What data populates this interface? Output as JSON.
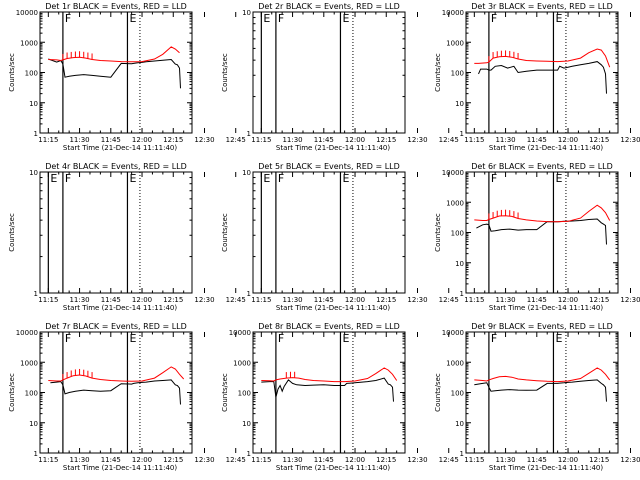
{
  "colors": {
    "events": "#000000",
    "lld": "#ff0000",
    "axes": "#000000",
    "background": "#ffffff"
  },
  "x_ticks": [
    "11:15",
    "11:30",
    "11:45",
    "12:00",
    "12:15",
    "12:30",
    "12:45"
  ],
  "x_label": "Start Time (21-Dec-14 11:11:40)",
  "y_label": "Counts/sec",
  "chart_data": [
    {
      "type": "line",
      "title": "Det 1r BLACK = Events, RED = LLD",
      "ylog": true,
      "yticks": [
        "1",
        "10",
        "100",
        "1000",
        "10000"
      ],
      "ylim": [
        1,
        10000
      ],
      "x_range_min": [
        15,
        53
      ],
      "markers": [
        {
          "t": 22,
          "label": "F"
        },
        {
          "t": 53,
          "label": "E"
        }
      ],
      "dotted_t": 59,
      "series": [
        {
          "role": "events",
          "x": [
            15,
            19,
            21,
            22,
            23,
            25,
            28,
            32,
            36,
            40,
            45,
            50,
            55,
            56,
            58,
            60,
            62,
            66,
            70,
            74,
            76,
            77,
            78,
            78.5
          ],
          "y": [
            280,
            220,
            250,
            190,
            70,
            75,
            80,
            85,
            80,
            75,
            70,
            200,
            195,
            200,
            210,
            215,
            225,
            240,
            255,
            270,
            190,
            180,
            140,
            30
          ]
        },
        {
          "role": "lld",
          "x": [
            15,
            19,
            21,
            22,
            24,
            27,
            30,
            33,
            36,
            40,
            45,
            50,
            55,
            60,
            66,
            70,
            74,
            76,
            78
          ],
          "y": [
            270,
            260,
            250,
            260,
            290,
            310,
            320,
            300,
            270,
            250,
            240,
            230,
            225,
            230,
            280,
            400,
            700,
            600,
            450
          ],
          "ticks_at": [
            22,
            24,
            26,
            28,
            30,
            32,
            34,
            36
          ]
        }
      ]
    },
    {
      "type": "line",
      "title": "Det 2r BLACK = Events, RED = LLD",
      "ylog": true,
      "yticks": [
        "1",
        "10"
      ],
      "ylim": [
        1,
        10
      ],
      "x_range_min": [
        15,
        53
      ],
      "markers": [
        {
          "t": 15,
          "label": "E"
        },
        {
          "t": 22,
          "label": "F"
        },
        {
          "t": 53,
          "label": "E"
        }
      ],
      "dotted_t": 59,
      "series": []
    },
    {
      "type": "line",
      "title": "Det 3r BLACK = Events, RED = LLD",
      "ylog": true,
      "yticks": [
        "1",
        "10",
        "100",
        "1000",
        "10000"
      ],
      "ylim": [
        1,
        10000
      ],
      "x_range_min": [
        15,
        53
      ],
      "markers": [
        {
          "t": 22,
          "label": "F"
        },
        {
          "t": 53,
          "label": "E"
        }
      ],
      "dotted_t": 59,
      "series": [
        {
          "role": "events",
          "x": [
            17,
            18,
            21,
            22,
            23,
            25,
            28,
            31,
            34,
            36,
            40,
            45,
            50,
            55,
            56,
            58,
            60,
            62,
            66,
            70,
            74,
            76,
            77,
            78,
            78.5
          ],
          "y": [
            90,
            130,
            130,
            120,
            120,
            160,
            170,
            140,
            160,
            100,
            110,
            120,
            120,
            120,
            160,
            140,
            150,
            160,
            180,
            200,
            230,
            180,
            150,
            90,
            20
          ]
        },
        {
          "role": "lld",
          "x": [
            15,
            17,
            21,
            22,
            24,
            27,
            30,
            33,
            36,
            40,
            45,
            50,
            55,
            60,
            66,
            70,
            74,
            76,
            78,
            80
          ],
          "y": [
            200,
            200,
            210,
            220,
            300,
            330,
            340,
            320,
            280,
            250,
            240,
            235,
            230,
            240,
            300,
            450,
            600,
            550,
            350,
            150
          ],
          "ticks_at": [
            22,
            24,
            26,
            28,
            30,
            32,
            34,
            36
          ]
        }
      ]
    },
    {
      "type": "line",
      "title": "Det 4r BLACK = Events, RED = LLD",
      "ylog": true,
      "yticks": [
        "1",
        "10"
      ],
      "ylim": [
        1,
        10
      ],
      "x_range_min": [
        15,
        53
      ],
      "markers": [
        {
          "t": 15,
          "label": "E"
        },
        {
          "t": 22,
          "label": "F"
        },
        {
          "t": 53,
          "label": "E"
        }
      ],
      "dotted_t": 59,
      "series": []
    },
    {
      "type": "line",
      "title": "Det 5r BLACK = Events, RED = LLD",
      "ylog": true,
      "yticks": [
        "1",
        "10"
      ],
      "ylim": [
        1,
        10
      ],
      "x_range_min": [
        15,
        53
      ],
      "markers": [
        {
          "t": 15,
          "label": "E"
        },
        {
          "t": 22,
          "label": "F"
        },
        {
          "t": 53,
          "label": "E"
        }
      ],
      "dotted_t": 59,
      "series": []
    },
    {
      "type": "line",
      "title": "Det 6r BLACK = Events, RED = LLD",
      "ylog": true,
      "yticks": [
        "1",
        "10",
        "100",
        "1000",
        "10000"
      ],
      "ylim": [
        1,
        10000
      ],
      "x_range_min": [
        15,
        53
      ],
      "markers": [
        {
          "t": 22,
          "label": "F"
        },
        {
          "t": 53,
          "label": "E"
        }
      ],
      "dotted_t": 59,
      "series": [
        {
          "role": "events",
          "x": [
            16,
            19,
            21,
            22,
            23,
            25,
            28,
            32,
            36,
            40,
            45,
            50,
            55,
            56,
            58,
            60,
            62,
            66,
            70,
            74,
            76,
            77,
            78,
            78.5
          ],
          "y": [
            140,
            180,
            190,
            180,
            110,
            115,
            125,
            130,
            120,
            125,
            125,
            230,
            225,
            230,
            235,
            235,
            240,
            250,
            270,
            280,
            210,
            190,
            170,
            40
          ]
        },
        {
          "role": "lld",
          "x": [
            15,
            19,
            21,
            22,
            24,
            27,
            30,
            33,
            36,
            40,
            45,
            50,
            55,
            60,
            66,
            70,
            74,
            76,
            78,
            80
          ],
          "y": [
            260,
            250,
            250,
            270,
            300,
            350,
            360,
            340,
            290,
            260,
            240,
            230,
            225,
            235,
            300,
            500,
            800,
            650,
            450,
            250
          ],
          "ticks_at": [
            22,
            24,
            26,
            28,
            30,
            32,
            34,
            36
          ]
        }
      ]
    },
    {
      "type": "line",
      "title": "Det 7r BLACK = Events, RED = LLD",
      "ylog": true,
      "yticks": [
        "1",
        "10",
        "100",
        "1000",
        "10000"
      ],
      "ylim": [
        1,
        10000
      ],
      "x_range_min": [
        15,
        53
      ],
      "markers": [
        {
          "t": 22,
          "label": "F"
        },
        {
          "t": 53,
          "label": "E"
        }
      ],
      "dotted_t": 59,
      "series": [
        {
          "role": "events",
          "x": [
            16,
            19,
            21,
            22,
            23,
            25,
            28,
            32,
            36,
            40,
            45,
            50,
            55,
            56,
            58,
            60,
            62,
            66,
            70,
            74,
            76,
            77,
            78,
            78.5
          ],
          "y": [
            210,
            220,
            230,
            180,
            90,
            100,
            110,
            120,
            115,
            110,
            115,
            195,
            190,
            200,
            210,
            215,
            220,
            240,
            250,
            260,
            180,
            170,
            140,
            40
          ]
        },
        {
          "role": "lld",
          "x": [
            15,
            19,
            21,
            22,
            24,
            27,
            30,
            33,
            36,
            40,
            45,
            50,
            55,
            60,
            66,
            70,
            74,
            76,
            78,
            80
          ],
          "y": [
            250,
            240,
            240,
            260,
            300,
            360,
            380,
            350,
            300,
            270,
            250,
            240,
            235,
            240,
            300,
            450,
            700,
            600,
            400,
            280
          ],
          "ticks_at": [
            22,
            24,
            26,
            28,
            30,
            32,
            34,
            36
          ]
        }
      ]
    },
    {
      "type": "line",
      "title": "Det 8r BLACK = Events, RED = LLD",
      "ylog": true,
      "yticks": [
        "1",
        "10",
        "100",
        "1000",
        "10000"
      ],
      "ylim": [
        1,
        10000
      ],
      "x_range_min": [
        15,
        53
      ],
      "markers": [
        {
          "t": 22,
          "label": "F"
        },
        {
          "t": 53,
          "label": "E"
        }
      ],
      "dotted_t": 59,
      "series": [
        {
          "role": "events",
          "x": [
            15,
            19,
            21,
            22,
            23,
            24,
            25,
            26,
            28,
            30,
            32,
            36,
            40,
            45,
            50,
            55,
            56,
            58,
            60,
            62,
            66,
            70,
            74,
            76,
            77,
            78,
            78.5
          ],
          "y": [
            220,
            230,
            230,
            70,
            130,
            170,
            110,
            160,
            260,
            200,
            180,
            170,
            175,
            180,
            170,
            170,
            200,
            205,
            210,
            215,
            230,
            250,
            300,
            190,
            180,
            150,
            50
          ]
        },
        {
          "role": "lld",
          "x": [
            15,
            19,
            21,
            22,
            24,
            27,
            30,
            33,
            36,
            40,
            45,
            50,
            55,
            60,
            66,
            70,
            74,
            76,
            78,
            80
          ],
          "y": [
            250,
            245,
            240,
            260,
            280,
            300,
            310,
            300,
            270,
            250,
            240,
            230,
            230,
            240,
            290,
            420,
            650,
            550,
            400,
            250
          ],
          "ticks_at": [
            27,
            29,
            31
          ]
        }
      ]
    },
    {
      "type": "line",
      "title": "Det 9r BLACK = Events, RED = LLD",
      "ylog": true,
      "yticks": [
        "1",
        "10",
        "100",
        "1000",
        "10000"
      ],
      "ylim": [
        1,
        10000
      ],
      "x_range_min": [
        15,
        53
      ],
      "markers": [
        {
          "t": 22,
          "label": "F"
        },
        {
          "t": 53,
          "label": "E"
        }
      ],
      "dotted_t": 59,
      "series": [
        {
          "role": "events",
          "x": [
            15,
            19,
            21,
            22,
            23,
            25,
            28,
            32,
            36,
            40,
            45,
            50,
            55,
            56,
            58,
            60,
            62,
            66,
            70,
            74,
            76,
            77,
            78,
            78.5
          ],
          "y": [
            180,
            200,
            210,
            150,
            110,
            115,
            120,
            125,
            120,
            118,
            120,
            200,
            200,
            205,
            210,
            215,
            220,
            235,
            250,
            260,
            200,
            180,
            150,
            50
          ]
        },
        {
          "role": "lld",
          "x": [
            15,
            19,
            21,
            22,
            24,
            27,
            30,
            33,
            36,
            40,
            45,
            50,
            55,
            60,
            66,
            70,
            74,
            76,
            78,
            80
          ],
          "y": [
            260,
            250,
            240,
            260,
            290,
            330,
            340,
            320,
            280,
            260,
            245,
            235,
            230,
            240,
            290,
            430,
            650,
            550,
            400,
            260
          ],
          "ticks_at": []
        }
      ]
    }
  ]
}
